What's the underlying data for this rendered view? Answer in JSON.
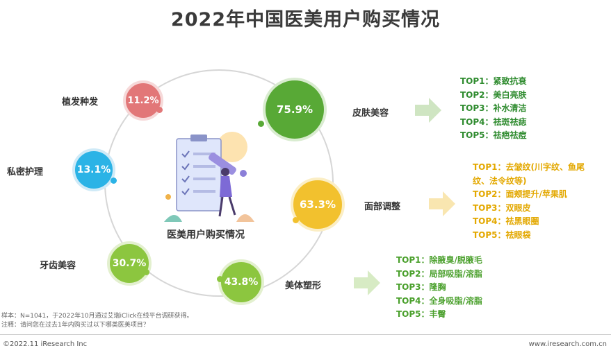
{
  "title": "2022年中国医美用户购买情况",
  "center_label": "医美用户购买情况",
  "chart_data": {
    "type": "bubble",
    "title": "2022年中国医美用户购买情况",
    "categories": [
      "皮肤美容",
      "面部调整",
      "美体塑形",
      "牙齿美容",
      "私密护理",
      "植发种发"
    ],
    "values": [
      75.9,
      63.3,
      43.8,
      30.7,
      13.1,
      11.2
    ],
    "value_labels": [
      "75.9%",
      "63.3%",
      "43.8%",
      "30.7%",
      "13.1%",
      "11.2%"
    ],
    "colors": [
      "#58a936",
      "#f2c12e",
      "#8cc63f",
      "#8cc63f",
      "#2bb3e6",
      "#e27778"
    ],
    "top_lists": [
      {
        "category": "皮肤美容",
        "color": "#2e8b2e",
        "items": [
          "TOP1：紧致抗衰",
          "TOP2：美白亮肤",
          "TOP3：补水清洁",
          "TOP4：祛斑祛痣",
          "TOP5：祛疤祛痘"
        ]
      },
      {
        "category": "面部调整",
        "color": "#e3a800",
        "items": [
          "TOP1：去皱纹(川字纹、鱼尾",
          "纹、法令纹等)",
          "TOP2：面颊提升/苹果肌",
          "TOP3：双眼皮",
          "TOP4：祛黑眼圈",
          "TOP5：祛眼袋"
        ]
      },
      {
        "category": "美体塑形",
        "color": "#4aa02c",
        "items": [
          "TOP1：除腋臭/脱腋毛",
          "TOP2：局部吸脂/溶脂",
          "TOP3：隆胸",
          "TOP4：全身吸脂/溶脂",
          "TOP5：丰臀"
        ]
      }
    ]
  },
  "notes": {
    "sample": "样本：N=1041，于2022年10月通过艾瑞iClick在线平台调研获得。",
    "question": "注释：请问您在过去1年内购买过以下哪类医美项目？"
  },
  "footer": {
    "left": "©2022.11 iResearch Inc",
    "right": "www.iresearch.com.cn"
  }
}
